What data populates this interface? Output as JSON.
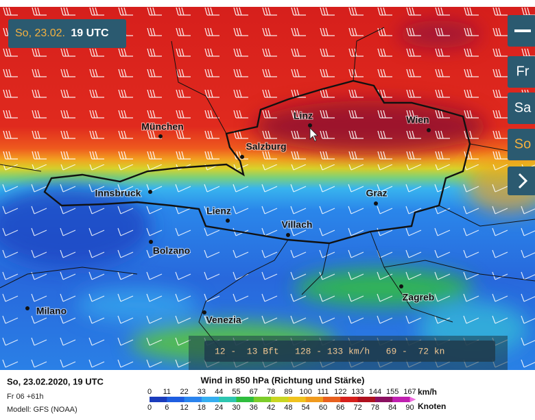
{
  "header": {
    "date": "So, 23.02.",
    "time": "19 UTC"
  },
  "nav": {
    "days": [
      "Fr",
      "Sa",
      "So"
    ]
  },
  "map": {
    "cities": [
      "München",
      "Linz",
      "Wien",
      "Salzburg",
      "Innsbruck",
      "Graz",
      "Lienz",
      "Villach",
      "Bolzano",
      "Zagreb",
      "Milano",
      "Venezia"
    ]
  },
  "tooltip": {
    "text": "12 -  13 Bft   128 - 133 km/h   69 -  72 kn"
  },
  "footer": {
    "datetime": "So, 23.02.2020, 19 UTC",
    "run": "Fr 06 +61h",
    "model": "Modell: GFS (NOAA)"
  },
  "legend": {
    "title": "Wind in 850 hPa (Richtung und Stärke)",
    "kmh": {
      "unit": "km/h",
      "ticks": [
        0,
        11,
        22,
        33,
        44,
        55,
        67,
        78,
        89,
        100,
        111,
        122,
        133,
        144,
        155,
        167
      ]
    },
    "knots": {
      "unit": "Knoten",
      "ticks": [
        0,
        6,
        12,
        18,
        24,
        30,
        36,
        42,
        48,
        54,
        60,
        66,
        72,
        78,
        84,
        90
      ]
    },
    "colors": [
      "#1a3cbc",
      "#1f5ee0",
      "#2b84ee",
      "#36aef0",
      "#2ec6b0",
      "#2fbd3e",
      "#7ccc2a",
      "#c9d622",
      "#f0c21e",
      "#f09a1e",
      "#e8601e",
      "#d6201c",
      "#ae101e",
      "#8a1060",
      "#c020b0",
      "#f06ee0"
    ]
  }
}
